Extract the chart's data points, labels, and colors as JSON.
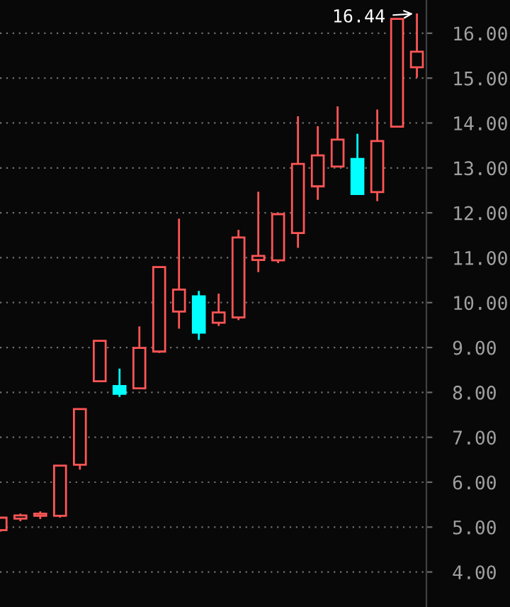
{
  "chart_data": {
    "type": "candlestick",
    "categories": [
      null,
      null,
      null,
      null,
      null,
      null,
      null,
      null,
      null,
      null,
      null,
      null,
      null,
      null,
      null,
      null,
      null,
      null,
      null,
      null,
      null,
      null
    ],
    "ohlc": [
      [
        4.93,
        5.21,
        4.9,
        5.21
      ],
      [
        5.19,
        5.3,
        5.13,
        5.26
      ],
      [
        5.25,
        5.35,
        5.18,
        5.3
      ],
      [
        5.25,
        6.37,
        5.21,
        6.37
      ],
      [
        6.39,
        7.63,
        6.28,
        7.63
      ],
      [
        8.25,
        9.15,
        8.25,
        9.15
      ],
      [
        8.14,
        8.53,
        7.9,
        7.97
      ],
      [
        8.09,
        9.47,
        8.09,
        8.99
      ],
      [
        8.91,
        10.79,
        8.88,
        10.79
      ],
      [
        9.8,
        11.87,
        9.42,
        10.29
      ],
      [
        10.14,
        10.26,
        9.17,
        9.33
      ],
      [
        9.55,
        10.2,
        9.48,
        9.78
      ],
      [
        9.67,
        11.62,
        9.61,
        11.45
      ],
      [
        10.95,
        12.47,
        10.68,
        11.04
      ],
      [
        10.94,
        11.97,
        10.88,
        11.97
      ],
      [
        11.55,
        14.15,
        11.22,
        13.09
      ],
      [
        12.59,
        13.93,
        12.29,
        13.28
      ],
      [
        13.03,
        14.37,
        13.03,
        13.63
      ],
      [
        13.2,
        13.76,
        12.42,
        12.42
      ],
      [
        12.46,
        14.3,
        12.26,
        13.6
      ],
      [
        13.92,
        16.32,
        13.92,
        16.32
      ],
      [
        15.24,
        16.44,
        15.01,
        15.59
      ]
    ],
    "colors": [
      "#ff5555",
      "#ff5555",
      "#ff5555",
      "#ff5555",
      "#ff5555",
      "#ff5555",
      "#00ffff",
      "#ff5555",
      "#ff5555",
      "#ff5555",
      "#00ffff",
      "#ff5555",
      "#ff5555",
      "#ff5555",
      "#ff5555",
      "#ff5555",
      "#ff5555",
      "#ff5555",
      "#00ffff",
      "#ff5555",
      "#ff5555",
      "#ff5555"
    ],
    "ylim": [
      3.22,
      16.74
    ],
    "yticks": [
      {
        "value": 4,
        "label": "4.00"
      },
      {
        "value": 5,
        "label": "5.00"
      },
      {
        "value": 6,
        "label": "6.00"
      },
      {
        "value": 7,
        "label": "7.00"
      },
      {
        "value": 8,
        "label": "8.00"
      },
      {
        "value": 9,
        "label": "9.00"
      },
      {
        "value": 10,
        "label": "10.00"
      },
      {
        "value": 11,
        "label": "11.00"
      },
      {
        "value": 12,
        "label": "12.00"
      },
      {
        "value": 13,
        "label": "13.00"
      },
      {
        "value": 14,
        "label": "14.00"
      },
      {
        "value": 15,
        "label": "15.00"
      },
      {
        "value": 16,
        "label": "16.00"
      }
    ],
    "grid": "y",
    "tick_labels": "y",
    "annotations": [
      "16.44"
    ]
  }
}
